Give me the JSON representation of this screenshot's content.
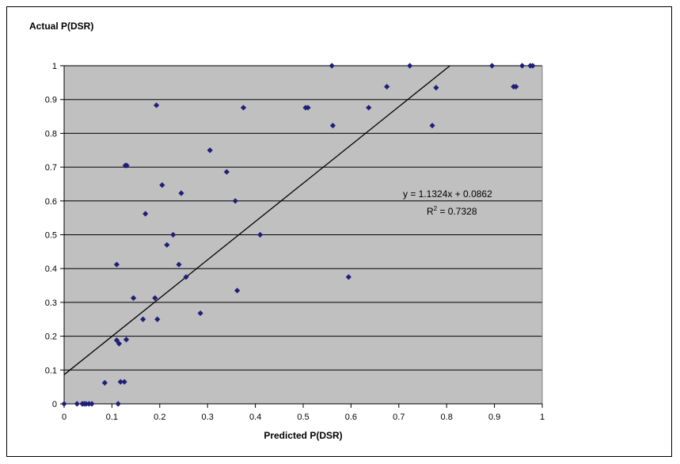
{
  "chart_data": {
    "type": "scatter",
    "title": "",
    "xlabel": "Predicted P(DSR)",
    "ylabel": "Actual P(DSR)",
    "xlim": [
      0,
      1
    ],
    "ylim": [
      0,
      1
    ],
    "x_ticks": [
      "0",
      "0.1",
      "0.2",
      "0.3",
      "0.4",
      "0.5",
      "0.6",
      "0.7",
      "0.8",
      "0.9",
      "1"
    ],
    "y_ticks": [
      "0",
      "0.1",
      "0.2",
      "0.3",
      "0.4",
      "0.5",
      "0.6",
      "0.7",
      "0.8",
      "0.9",
      "1"
    ],
    "grid": "horizontal",
    "plot_background": "#c0c0c0",
    "marker_color": "#1f1f7a",
    "trendline": {
      "slope": 1.1324,
      "intercept": 0.0862,
      "equation_text": "y = 1.1324x + 0.0862",
      "r2_prefix": "R",
      "r2_superscript": "2",
      "r2_suffix": " = 0.7328"
    },
    "series": [
      {
        "points": [
          [
            0.0,
            0.0
          ],
          [
            0.027,
            0.0
          ],
          [
            0.038,
            0.0
          ],
          [
            0.042,
            0.0
          ],
          [
            0.046,
            0.0
          ],
          [
            0.052,
            0.0
          ],
          [
            0.058,
            0.0
          ],
          [
            0.085,
            0.062
          ],
          [
            0.113,
            0.0
          ],
          [
            0.118,
            0.065
          ],
          [
            0.126,
            0.065
          ],
          [
            0.11,
            0.188
          ],
          [
            0.115,
            0.178
          ],
          [
            0.13,
            0.19
          ],
          [
            0.145,
            0.313
          ],
          [
            0.165,
            0.25
          ],
          [
            0.19,
            0.313
          ],
          [
            0.195,
            0.25
          ],
          [
            0.11,
            0.412
          ],
          [
            0.128,
            0.705
          ],
          [
            0.131,
            0.705
          ],
          [
            0.17,
            0.562
          ],
          [
            0.193,
            0.883
          ],
          [
            0.205,
            0.647
          ],
          [
            0.215,
            0.47
          ],
          [
            0.228,
            0.5
          ],
          [
            0.24,
            0.412
          ],
          [
            0.245,
            0.623
          ],
          [
            0.255,
            0.375
          ],
          [
            0.285,
            0.268
          ],
          [
            0.305,
            0.75
          ],
          [
            0.34,
            0.686
          ],
          [
            0.358,
            0.6
          ],
          [
            0.362,
            0.335
          ],
          [
            0.375,
            0.876
          ],
          [
            0.41,
            0.5
          ],
          [
            0.505,
            0.876
          ],
          [
            0.51,
            0.876
          ],
          [
            0.56,
            1.0
          ],
          [
            0.562,
            0.823
          ],
          [
            0.595,
            0.375
          ],
          [
            0.637,
            0.876
          ],
          [
            0.675,
            0.938
          ],
          [
            0.723,
            1.0
          ],
          [
            0.77,
            0.823
          ],
          [
            0.778,
            0.935
          ],
          [
            0.895,
            1.0
          ],
          [
            0.94,
            0.938
          ],
          [
            0.945,
            0.938
          ],
          [
            0.958,
            1.0
          ],
          [
            0.975,
            1.0
          ],
          [
            0.98,
            1.0
          ]
        ]
      }
    ]
  }
}
